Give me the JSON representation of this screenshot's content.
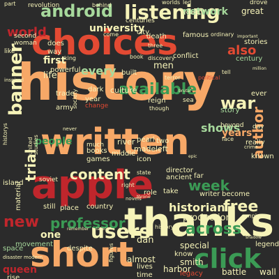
{
  "words": [
    {
      "text": "android",
      "color": "#a7d99c",
      "rot": 0
    },
    {
      "text": "listening",
      "color": "#f6f3b8",
      "rot": 0
    },
    {
      "text": "choices",
      "color": "#e34a33",
      "rot": 0
    },
    {
      "text": "history",
      "color": "#f7a867",
      "rot": 0
    },
    {
      "text": "written",
      "color": "#f7a867",
      "rot": 0
    },
    {
      "text": "apple",
      "color": "#c0262c",
      "rot": 0
    },
    {
      "text": "thanks",
      "color": "#f6f3b8",
      "rot": 0
    },
    {
      "text": "short",
      "color": "#f7a867",
      "rot": 0
    },
    {
      "text": "click",
      "color": "#3b9b55",
      "rot": 0
    },
    {
      "text": "users",
      "color": "#f6f3b8",
      "rot": 0
    },
    {
      "text": "across",
      "color": "#3b9b55",
      "rot": 0
    },
    {
      "text": "content",
      "color": "#f6f3b8",
      "rot": 0
    },
    {
      "text": "available",
      "color": "#3b9b55",
      "rot": 0
    },
    {
      "text": "banner",
      "color": "#f6f3b8",
      "rot": -90
    },
    {
      "text": "author",
      "color": "#f7a867",
      "rot": -90
    },
    {
      "text": "free",
      "color": "#f6f3b8",
      "rot": 0
    },
    {
      "text": "professor",
      "color": "#3b9b55",
      "rot": 0
    },
    {
      "text": "new",
      "color": "#c0262c",
      "rot": 0
    },
    {
      "text": "trial",
      "color": "#f6f3b8",
      "rot": -90
    },
    {
      "text": "people",
      "color": "#3b9b55",
      "rot": 0
    },
    {
      "text": "every",
      "color": "#a7d99c",
      "rot": 0
    },
    {
      "text": "war",
      "color": "#f6f3b8",
      "rot": 0
    },
    {
      "text": "week",
      "color": "#3b9b55",
      "rot": 0
    },
    {
      "text": "shows",
      "color": "#a7d99c",
      "rot": 0
    },
    {
      "text": "years",
      "color": "#f7a867",
      "rot": 0
    },
    {
      "text": "also",
      "color": "#e34a33",
      "rot": 0
    },
    {
      "text": "one",
      "color": "#f6f3b8",
      "rot": 0
    },
    {
      "text": "world",
      "color": "#c0262c",
      "rot": 0
    },
    {
      "text": "historian",
      "color": "#f6f3b8",
      "rot": 0
    },
    {
      "text": "production",
      "color": "#f6f3b8",
      "rot": 0
    },
    {
      "text": "university",
      "color": "#f6f3b8",
      "rot": 0
    },
    {
      "text": "network",
      "color": "#a7d99c",
      "rot": 0
    },
    {
      "text": "great",
      "color": "#f6f3b8",
      "rot": 0
    },
    {
      "text": "first",
      "color": "#f6f3b8",
      "rot": 0
    },
    {
      "text": "life",
      "color": "#f6f3b8",
      "rot": 0
    },
    {
      "text": "story",
      "color": "#a7d99c",
      "rot": 0
    },
    {
      "text": "stories",
      "color": "#f6f3b8",
      "rot": 0
    },
    {
      "text": "century",
      "color": "#a7d99c",
      "rot": 0
    },
    {
      "text": "drove",
      "color": "#f6f3b8",
      "rot": 0
    },
    {
      "text": "culture",
      "color": "#f6f3b8",
      "rot": 0
    },
    {
      "text": "made",
      "color": "#f6f3b8",
      "rot": 0
    },
    {
      "text": "left",
      "color": "#f6f3b8",
      "rot": 0
    },
    {
      "text": "country",
      "color": "#f6f3b8",
      "rot": 0
    },
    {
      "text": "place",
      "color": "#f6f3b8",
      "rot": 0
    },
    {
      "text": "still",
      "color": "#f6f3b8",
      "rot": 0
    },
    {
      "text": "dan",
      "color": "#f6f3b8",
      "rot": 0
    },
    {
      "text": "special",
      "color": "#f6f3b8",
      "rot": 0
    },
    {
      "text": "know",
      "color": "#f6f3b8",
      "rot": 0
    },
    {
      "text": "legend",
      "color": "#f6f3b8",
      "rot": 0
    },
    {
      "text": "smith",
      "color": "#f6f3b8",
      "rot": 0
    },
    {
      "text": "almost",
      "color": "#f6f3b8",
      "rot": 0
    },
    {
      "text": "lives",
      "color": "#f6f3b8",
      "rot": 0
    },
    {
      "text": "harbor",
      "color": "#f6f3b8",
      "rot": 0
    },
    {
      "text": "legacy",
      "color": "#e34a33",
      "rot": 0
    },
    {
      "text": "battle",
      "color": "#f6f3b8",
      "rot": 0
    },
    {
      "text": "wall",
      "color": "#f6f3b8",
      "rot": 0
    },
    {
      "text": "time",
      "color": "#f6f3b8",
      "rot": 0
    },
    {
      "text": "queen",
      "color": "#c0262c",
      "rot": 0
    },
    {
      "text": "rise",
      "color": "#f6f3b8",
      "rot": 0
    },
    {
      "text": "space",
      "color": "#a7d99c",
      "rot": 0
    },
    {
      "text": "movement",
      "color": "#a7d99c",
      "rot": 0
    },
    {
      "text": "island",
      "color": "#f6f3b8",
      "rot": 0
    },
    {
      "text": "material",
      "color": "#f6f3b8",
      "rot": -90
    },
    {
      "text": "director",
      "color": "#f6f3b8",
      "rot": 0
    },
    {
      "text": "ancient",
      "color": "#f6f3b8",
      "rot": 0
    },
    {
      "text": "far",
      "color": "#f6f3b8",
      "rot": 0
    },
    {
      "text": "writer",
      "color": "#f6f3b8",
      "rot": 0
    },
    {
      "text": "become",
      "color": "#f6f3b8",
      "rot": 0
    },
    {
      "text": "role",
      "color": "#f6f3b8",
      "rot": 0
    },
    {
      "text": "take",
      "color": "#f6f3b8",
      "rot": 0
    },
    {
      "text": "despite",
      "color": "#f6f3b8",
      "rot": 0
    },
    {
      "text": "books",
      "color": "#f6f3b8",
      "rot": 0
    },
    {
      "text": "middle",
      "color": "#f6f3b8",
      "rot": 0
    },
    {
      "text": "games",
      "color": "#f6f3b8",
      "rot": 0
    },
    {
      "text": "river",
      "color": "#f6f3b8",
      "rot": 0
    },
    {
      "text": "pearl",
      "color": "#f6f3b8",
      "rot": 0
    },
    {
      "text": "two",
      "color": "#f6f3b8",
      "rot": 0
    },
    {
      "text": "much",
      "color": "#f6f3b8",
      "rot": 0
    },
    {
      "text": "army",
      "color": "#f6f3b8",
      "rot": 0
    },
    {
      "text": "trade",
      "color": "#f6f3b8",
      "rot": 0
    },
    {
      "text": "year",
      "color": "#f6f3b8",
      "rot": 0
    },
    {
      "text": "change",
      "color": "#e34a33",
      "rot": 0
    },
    {
      "text": "powerful",
      "color": "#f6f3b8",
      "rot": 0
    },
    {
      "text": "built",
      "color": "#f6f3b8",
      "rot": 0
    },
    {
      "text": "reign",
      "color": "#f6f3b8",
      "rot": 0
    },
    {
      "text": "men",
      "color": "#f6f3b8",
      "rot": 0
    },
    {
      "text": "conflict",
      "color": "#f6f3b8",
      "rot": 0
    },
    {
      "text": "death",
      "color": "#f6f3b8",
      "rot": 0
    },
    {
      "text": "famous",
      "color": "#f6f3b8",
      "rot": 0
    },
    {
      "text": "city",
      "color": "#f6f3b8",
      "rot": 0
    },
    {
      "text": "centuries",
      "color": "#f6f3b8",
      "rot": 0
    },
    {
      "text": "come",
      "color": "#f6f3b8",
      "rot": 0
    },
    {
      "text": "way",
      "color": "#f6f3b8",
      "rot": 0
    },
    {
      "text": "does",
      "color": "#f6f3b8",
      "rot": 0
    },
    {
      "text": "behind",
      "color": "#f6f3b8",
      "rot": 0
    },
    {
      "text": "revolution",
      "color": "#f6f3b8",
      "rot": 0
    },
    {
      "text": "worlds",
      "color": "#f6f3b8",
      "rot": 0
    },
    {
      "text": "led",
      "color": "#f6f3b8",
      "rot": 0
    },
    {
      "text": "young",
      "color": "#f6f3b8",
      "rot": 0
    },
    {
      "text": "ordinary",
      "color": "#f6f3b8",
      "rot": 0
    },
    {
      "text": "second",
      "color": "#f6f3b8",
      "rot": 0
    },
    {
      "text": "woman",
      "color": "#f6f3b8",
      "rot": 0
    },
    {
      "text": "like",
      "color": "#f6f3b8",
      "rot": 0
    },
    {
      "text": "part",
      "color": "#f6f3b8",
      "rot": 0
    },
    {
      "text": "book",
      "color": "#f6f3b8",
      "rot": 0
    },
    {
      "text": "discovery",
      "color": "#f6f3b8",
      "rot": 0
    },
    {
      "text": "tell",
      "color": "#f6f3b8",
      "rot": 0
    },
    {
      "text": "really",
      "color": "#f6f3b8",
      "rot": 0
    },
    {
      "text": "beyond",
      "color": "#f6f3b8",
      "rot": 0
    },
    {
      "text": "known",
      "color": "#f6f3b8",
      "rot": 0
    },
    {
      "text": "day",
      "color": "#f6f3b8",
      "rot": 0
    },
    {
      "text": "ever",
      "color": "#f6f3b8",
      "rot": 0
    },
    {
      "text": "sea",
      "color": "#f6f3b8",
      "rot": 0
    },
    {
      "text": "though",
      "color": "#f6f3b8",
      "rot": 0
    },
    {
      "text": "dark",
      "color": "#f6f3b8",
      "rot": 0
    },
    {
      "text": "king",
      "color": "#f6f3b8",
      "rot": 0
    },
    {
      "text": "society",
      "color": "#f6f3b8",
      "rot": -90
    },
    {
      "text": "united",
      "color": "#f6f3b8",
      "rot": -90
    },
    {
      "text": "studies",
      "color": "#f6f3b8",
      "rot": -90
    },
    {
      "text": "historys",
      "color": "#f6f3b8",
      "rot": -90
    },
    {
      "text": "soviet",
      "color": "#f6f3b8",
      "rot": 0
    },
    {
      "text": "never",
      "color": "#f6f3b8",
      "rot": 0
    },
    {
      "text": "right",
      "color": "#f6f3b8",
      "rot": 0
    },
    {
      "text": "political",
      "color": "#e34a33",
      "rot": 0
    },
    {
      "text": "modern",
      "color": "#f6f3b8",
      "rot": 0
    },
    {
      "text": "figures",
      "color": "#f6f3b8",
      "rot": -90
    },
    {
      "text": "epic",
      "color": "#f6f3b8",
      "rot": 0
    },
    {
      "text": "icon",
      "color": "#f6f3b8",
      "rot": 0
    },
    {
      "text": "state",
      "color": "#f6f3b8",
      "rot": 0
    },
    {
      "text": "inspired",
      "color": "#f6f3b8",
      "rot": 0
    },
    {
      "text": "remember",
      "color": "#f6f3b8",
      "rot": 0
    },
    {
      "text": "later",
      "color": "#f6f3b8",
      "rot": 0
    },
    {
      "text": "shadow",
      "color": "#f6f3b8",
      "rot": 0
    },
    {
      "text": "history",
      "color": "#f6f3b8",
      "rot": 0
    },
    {
      "text": "disaster",
      "color": "#f6f3b8",
      "rot": 0
    },
    {
      "text": "novels",
      "color": "#f6f3b8",
      "rot": 0
    },
    {
      "text": "throne",
      "color": "#f6f3b8",
      "rot": 0
    },
    {
      "text": "brutal",
      "color": "#f6f3b8",
      "rot": 0
    },
    {
      "text": "terror",
      "color": "#f6f3b8",
      "rot": 0
    },
    {
      "text": "three",
      "color": "#f6f3b8",
      "rot": 0
    },
    {
      "text": "million",
      "color": "#f6f3b8",
      "rot": 0
    },
    {
      "text": "important",
      "color": "#f6f3b8",
      "rot": 0
    },
    {
      "text": "face",
      "color": "#f6f3b8",
      "rot": 0
    },
    {
      "text": "crime",
      "color": "#f6f3b8",
      "rot": 0
    },
    {
      "text": "empire",
      "color": "#f6f3b8",
      "rot": 0
    }
  ]
}
